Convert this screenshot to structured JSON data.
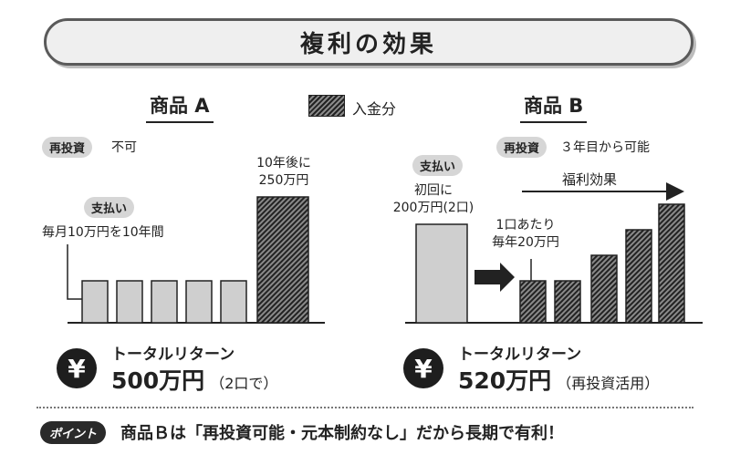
{
  "title": "複利の効果",
  "legend": {
    "label": "入金分"
  },
  "colors": {
    "deposit_fill": "#cfcfcf",
    "hatch_dark": "#222222",
    "hatch_light": "#8a8a8a",
    "outline": "#222222",
    "accent": "#2a2a2a"
  },
  "panel_a": {
    "title": "商品 A",
    "reinvest_badge": "再投資",
    "reinvest_text": "不可",
    "payment_badge": "支払い",
    "payment_text": "毎月10万円を10年間",
    "result_label_line1": "10年後に",
    "result_label_line2": "250万円",
    "total_label": "トータルリターン",
    "total_value": "500万円",
    "total_note": "（2口で）"
  },
  "panel_b": {
    "title": "商品 B",
    "reinvest_badge": "再投資",
    "reinvest_text": "３年目から可能",
    "payment_badge": "支払い",
    "initial_line1": "初回に",
    "initial_line2": "200万円(2口)",
    "per_unit_line1": "1口あたり",
    "per_unit_line2": "毎年20万円",
    "compound_label": "福利効果",
    "total_label": "トータルリターン",
    "total_value": "520万円",
    "total_note": "（再投資活用）"
  },
  "yen_symbol": "¥",
  "point": {
    "badge": "ポイント",
    "text": "商品Ｂは「再投資可能・元本制約なし」だから長期で有利！"
  },
  "chart_data": [
    {
      "type": "bar",
      "title": "商品 A",
      "categories": [
        "",
        "",
        "",
        "",
        "",
        ""
      ],
      "series": [
        {
          "name": "入金分",
          "values": [
            null,
            null,
            null,
            null,
            null,
            250
          ]
        }
      ],
      "annotations": [
        "毎月10万円を10年間",
        "10年後に 250万円"
      ]
    },
    {
      "type": "bar",
      "title": "商品 B",
      "categories": [
        "",
        "",
        "",
        "",
        "",
        "",
        ""
      ],
      "series": [
        {
          "name": "入金分",
          "values": [
            null,
            20,
            20,
            null,
            null,
            null,
            null
          ]
        }
      ],
      "annotations": [
        "初回に 200万円(2口)",
        "1口あたり 毎年20万円",
        "福利効果"
      ]
    }
  ]
}
